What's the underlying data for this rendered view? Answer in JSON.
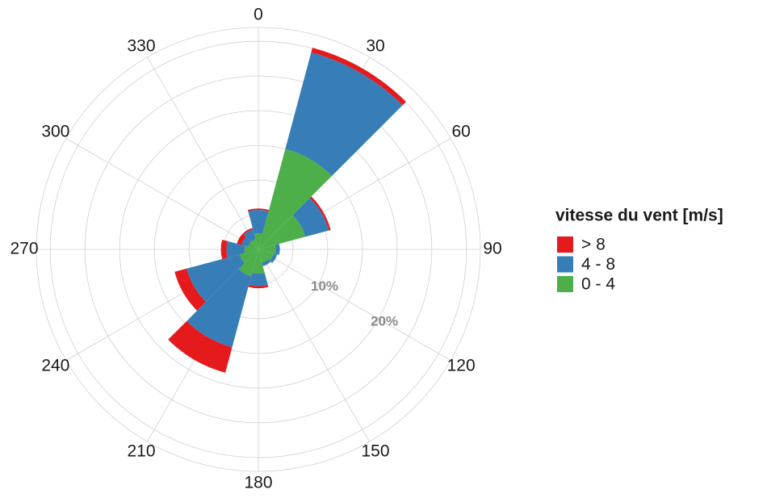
{
  "chart_data": {
    "type": "windrose",
    "x": [
      0,
      30,
      60,
      90,
      120,
      150,
      180,
      210,
      240,
      270,
      300,
      330
    ],
    "xlim": [
      0,
      360
    ],
    "xticks": [
      0,
      30,
      60,
      90,
      120,
      150,
      180,
      210,
      240,
      270,
      300,
      330
    ],
    "ylim": [
      0,
      32
    ],
    "yticks": [
      {
        "value": 10,
        "label": "10%"
      },
      {
        "value": 20,
        "label": "20%"
      }
    ],
    "minor_yticks": [
      5,
      15,
      25,
      30
    ],
    "grid": true,
    "legend_title": "vitesse du vent [m/s]",
    "legend_position": "right",
    "series": [
      {
        "name": "0 - 4",
        "color": "#4daf4a",
        "values": [
          2.3,
          15,
          7,
          2.5,
          2.3,
          2,
          3.5,
          4,
          2.8,
          2,
          1.5,
          1.5
        ]
      },
      {
        "name": "4 - 8",
        "color": "#377eb8",
        "values": [
          3.4,
          14.4,
          3.5,
          0.6,
          0.5,
          0.5,
          1.8,
          10.6,
          7.9,
          2.6,
          1.0,
          1.5
        ]
      },
      {
        "name": "> 8",
        "color": "#e41a1c",
        "values": [
          0.2,
          0.7,
          0.3,
          0,
          0,
          0,
          0.3,
          3.8,
          1.8,
          0.8,
          0.7,
          0.2
        ]
      }
    ]
  }
}
